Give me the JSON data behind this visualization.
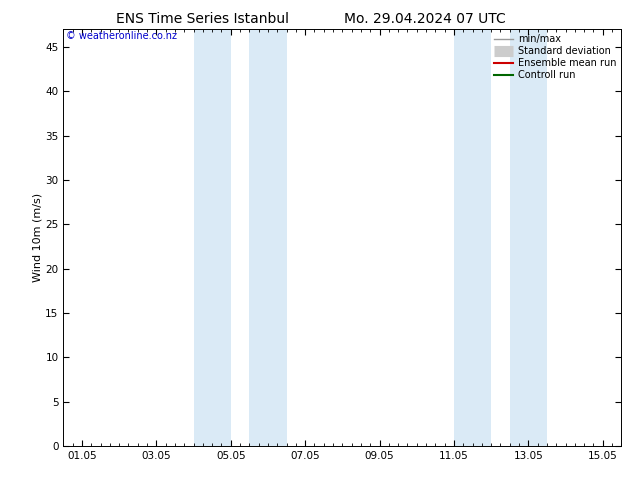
{
  "title_left": "ENS Time Series Istanbul",
  "title_right": "Mo. 29.04.2024 07 UTC",
  "ylabel": "Wind 10m (m/s)",
  "ylim": [
    0,
    47
  ],
  "yticks": [
    0,
    5,
    10,
    15,
    20,
    25,
    30,
    35,
    40,
    45
  ],
  "xlim_start": -0.5,
  "xlim_end": 14.5,
  "xtick_positions": [
    0,
    2,
    4,
    6,
    8,
    10,
    12,
    14
  ],
  "xtick_labels": [
    "01.05",
    "03.05",
    "05.05",
    "07.05",
    "09.05",
    "11.05",
    "13.05",
    "15.05"
  ],
  "shaded_bands": [
    {
      "xstart": 3.0,
      "xend": 4.0
    },
    {
      "xstart": 4.5,
      "xend": 5.5
    },
    {
      "xstart": 10.0,
      "xend": 11.0
    },
    {
      "xstart": 11.5,
      "xend": 12.5
    }
  ],
  "shade_color": "#daeaf6",
  "watermark_text": "© weatheronline.co.nz",
  "watermark_color": "#0000cc",
  "legend_items": [
    {
      "label": "min/max",
      "color": "#999999",
      "lw": 1.0,
      "style": "line"
    },
    {
      "label": "Standard deviation",
      "color": "#cccccc",
      "lw": 8,
      "style": "thick"
    },
    {
      "label": "Ensemble mean run",
      "color": "#cc0000",
      "lw": 1.5,
      "style": "line"
    },
    {
      "label": "Controll run",
      "color": "#006600",
      "lw": 1.5,
      "style": "line"
    }
  ],
  "bg_color": "#ffffff",
  "title_fontsize": 10,
  "axis_fontsize": 8,
  "tick_fontsize": 7.5
}
